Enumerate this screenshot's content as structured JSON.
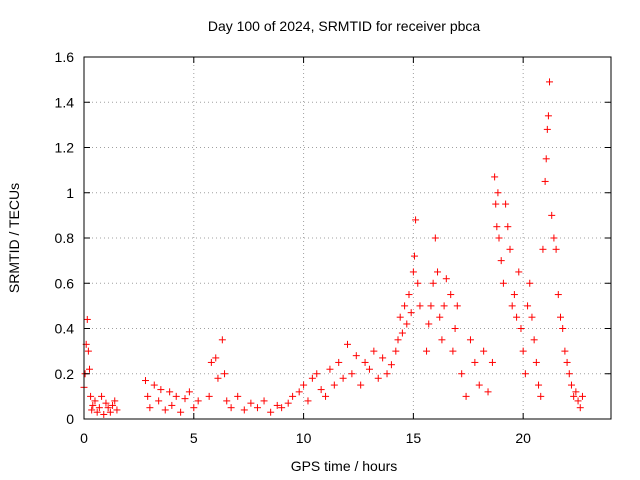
{
  "chart_data": {
    "type": "scatter",
    "title": "Day 100 of 2024, SRMTID for receiver pbca",
    "xlabel": "GPS time / hours",
    "ylabel": "SRMTID / TECUs",
    "xlim": [
      0,
      24
    ],
    "ylim": [
      0,
      1.6
    ],
    "xticks": [
      0,
      5,
      10,
      15,
      20
    ],
    "yticks": [
      0,
      0.2,
      0.4,
      0.6,
      0.8,
      1,
      1.2,
      1.4,
      1.6
    ],
    "xtick_labels": [
      "0",
      "5",
      "10",
      "15",
      "20"
    ],
    "ytick_labels": [
      "0",
      "0.2",
      "0.4",
      "0.6",
      "0.8",
      "1",
      "1.2",
      "1.4",
      "1.6"
    ],
    "grid": true,
    "marker": "+",
    "marker_color": "#ff0000",
    "series": [
      {
        "name": "SRMTID",
        "x": [
          0.0,
          0.05,
          0.1,
          0.15,
          0.2,
          0.25,
          0.3,
          0.35,
          0.4,
          0.5,
          0.6,
          0.7,
          0.8,
          0.9,
          1.0,
          1.1,
          1.2,
          1.3,
          1.4,
          1.5,
          2.8,
          2.9,
          3.0,
          3.2,
          3.4,
          3.5,
          3.7,
          3.9,
          4.0,
          4.2,
          4.4,
          4.6,
          4.8,
          5.0,
          5.2,
          5.7,
          5.8,
          6.0,
          6.1,
          6.3,
          6.4,
          6.5,
          6.7,
          7.0,
          7.3,
          7.6,
          7.9,
          8.2,
          8.5,
          8.8,
          9.0,
          9.3,
          9.5,
          9.8,
          10.0,
          10.2,
          10.4,
          10.6,
          10.8,
          11.0,
          11.2,
          11.4,
          11.6,
          11.8,
          12.0,
          12.2,
          12.4,
          12.6,
          12.8,
          13.0,
          13.2,
          13.4,
          13.6,
          13.8,
          14.0,
          14.2,
          14.3,
          14.4,
          14.5,
          14.6,
          14.7,
          14.8,
          14.9,
          15.0,
          15.05,
          15.1,
          15.2,
          15.3,
          15.6,
          15.7,
          15.8,
          15.9,
          16.0,
          16.1,
          16.2,
          16.3,
          16.4,
          16.5,
          16.7,
          16.8,
          16.9,
          17.0,
          17.2,
          17.4,
          17.6,
          17.8,
          18.0,
          18.2,
          18.4,
          18.6,
          18.7,
          18.75,
          18.8,
          18.85,
          18.9,
          19.0,
          19.1,
          19.2,
          19.3,
          19.4,
          19.5,
          19.6,
          19.7,
          19.8,
          19.9,
          20.0,
          20.1,
          20.2,
          20.3,
          20.4,
          20.5,
          20.6,
          20.7,
          20.8,
          20.9,
          21.0,
          21.05,
          21.1,
          21.15,
          21.2,
          21.3,
          21.4,
          21.5,
          21.6,
          21.7,
          21.8,
          21.9,
          22.0,
          22.1,
          22.2,
          22.3,
          22.4,
          22.5,
          22.6,
          22.7
        ],
        "y": [
          0.14,
          0.2,
          0.33,
          0.44,
          0.3,
          0.22,
          0.1,
          0.04,
          0.06,
          0.08,
          0.03,
          0.05,
          0.1,
          0.02,
          0.07,
          0.05,
          0.03,
          0.06,
          0.08,
          0.04,
          0.17,
          0.1,
          0.05,
          0.15,
          0.08,
          0.13,
          0.04,
          0.12,
          0.06,
          0.1,
          0.03,
          0.09,
          0.12,
          0.05,
          0.08,
          0.1,
          0.25,
          0.27,
          0.18,
          0.35,
          0.2,
          0.08,
          0.05,
          0.1,
          0.04,
          0.07,
          0.05,
          0.08,
          0.03,
          0.06,
          0.05,
          0.07,
          0.1,
          0.12,
          0.15,
          0.08,
          0.18,
          0.2,
          0.13,
          0.1,
          0.22,
          0.15,
          0.25,
          0.18,
          0.33,
          0.2,
          0.28,
          0.15,
          0.25,
          0.22,
          0.3,
          0.18,
          0.27,
          0.2,
          0.24,
          0.3,
          0.35,
          0.45,
          0.38,
          0.5,
          0.42,
          0.55,
          0.47,
          0.65,
          0.72,
          0.88,
          0.6,
          0.5,
          0.3,
          0.42,
          0.5,
          0.6,
          0.8,
          0.65,
          0.45,
          0.35,
          0.5,
          0.62,
          0.55,
          0.3,
          0.4,
          0.5,
          0.2,
          0.1,
          0.35,
          0.25,
          0.15,
          0.3,
          0.12,
          0.25,
          1.07,
          0.95,
          0.85,
          1.0,
          0.8,
          0.7,
          0.6,
          0.95,
          0.85,
          0.75,
          0.5,
          0.55,
          0.45,
          0.65,
          0.4,
          0.3,
          0.2,
          0.5,
          0.6,
          0.45,
          0.35,
          0.25,
          0.15,
          0.1,
          0.75,
          1.05,
          1.15,
          1.28,
          1.34,
          1.49,
          0.9,
          0.8,
          0.75,
          0.55,
          0.45,
          0.4,
          0.3,
          0.25,
          0.2,
          0.15,
          0.1,
          0.12,
          0.08,
          0.05,
          0.1
        ]
      }
    ]
  }
}
